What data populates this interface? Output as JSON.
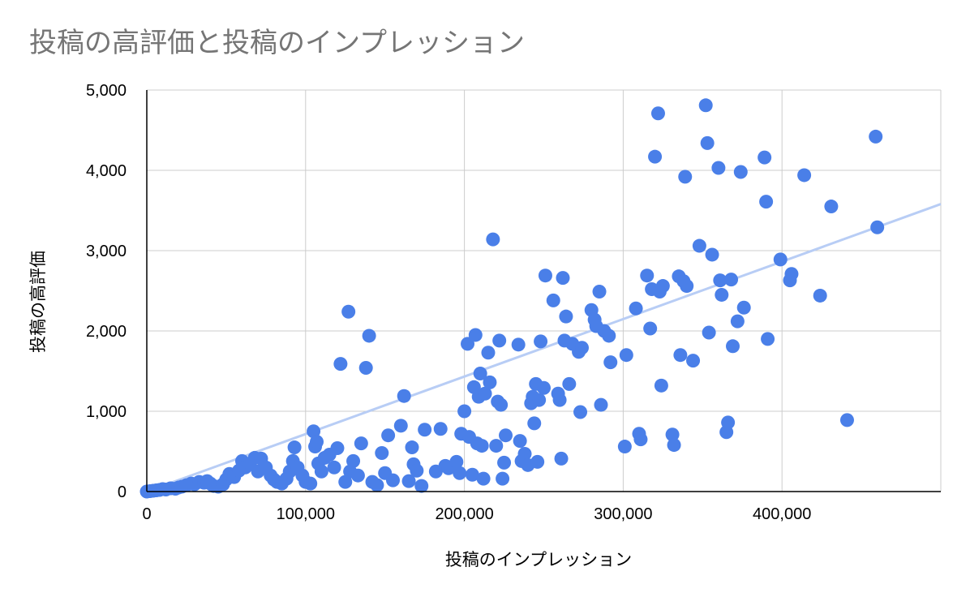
{
  "chart_data": {
    "type": "scatter",
    "title": "投稿の高評価と投稿のインプレッション",
    "xlabel": "投稿のインプレッション",
    "ylabel": "投稿の高評価",
    "xlim": [
      0,
      500000
    ],
    "ylim": [
      0,
      5000
    ],
    "x_ticks": [
      0,
      100000,
      200000,
      300000,
      400000
    ],
    "x_tick_labels": [
      "0",
      "100,000",
      "200,000",
      "300,000",
      "400,000"
    ],
    "y_ticks": [
      0,
      1000,
      2000,
      3000,
      4000,
      5000
    ],
    "y_tick_labels": [
      "0",
      "1,000",
      "2,000",
      "3,000",
      "4,000",
      "5,000"
    ],
    "grid": true,
    "legend": "none",
    "point_color": "#4a7fe8",
    "trendline": {
      "type": "linear",
      "color": "#b8cdf5",
      "points": [
        [
          0,
          0
        ],
        [
          500000,
          3580
        ]
      ]
    },
    "points": [
      [
        0,
        0
      ],
      [
        2000,
        5
      ],
      [
        4000,
        10
      ],
      [
        6000,
        15
      ],
      [
        8000,
        20
      ],
      [
        10000,
        30
      ],
      [
        12000,
        25
      ],
      [
        15000,
        40
      ],
      [
        18000,
        35
      ],
      [
        20000,
        50
      ],
      [
        22000,
        60
      ],
      [
        25000,
        80
      ],
      [
        28000,
        100
      ],
      [
        30000,
        90
      ],
      [
        33000,
        120
      ],
      [
        36000,
        110
      ],
      [
        38000,
        130
      ],
      [
        40000,
        100
      ],
      [
        42000,
        70
      ],
      [
        45000,
        60
      ],
      [
        48000,
        90
      ],
      [
        50000,
        150
      ],
      [
        52000,
        220
      ],
      [
        55000,
        180
      ],
      [
        58000,
        260
      ],
      [
        60000,
        380
      ],
      [
        62000,
        300
      ],
      [
        65000,
        350
      ],
      [
        68000,
        420
      ],
      [
        70000,
        250
      ],
      [
        72000,
        410
      ],
      [
        75000,
        300
      ],
      [
        78000,
        200
      ],
      [
        80000,
        150
      ],
      [
        82000,
        120
      ],
      [
        85000,
        100
      ],
      [
        88000,
        160
      ],
      [
        90000,
        250
      ],
      [
        92000,
        380
      ],
      [
        93000,
        550
      ],
      [
        95000,
        300
      ],
      [
        98000,
        200
      ],
      [
        100000,
        120
      ],
      [
        103000,
        100
      ],
      [
        105000,
        750
      ],
      [
        106000,
        560
      ],
      [
        107000,
        620
      ],
      [
        108000,
        350
      ],
      [
        110000,
        250
      ],
      [
        112000,
        420
      ],
      [
        115000,
        460
      ],
      [
        118000,
        300
      ],
      [
        120000,
        540
      ],
      [
        122000,
        1590
      ],
      [
        125000,
        120
      ],
      [
        127000,
        2240
      ],
      [
        128000,
        250
      ],
      [
        130000,
        380
      ],
      [
        133000,
        200
      ],
      [
        135000,
        600
      ],
      [
        138000,
        1540
      ],
      [
        140000,
        1940
      ],
      [
        142000,
        120
      ],
      [
        145000,
        80
      ],
      [
        148000,
        480
      ],
      [
        150000,
        230
      ],
      [
        152000,
        700
      ],
      [
        155000,
        140
      ],
      [
        160000,
        820
      ],
      [
        162000,
        1190
      ],
      [
        165000,
        130
      ],
      [
        167000,
        550
      ],
      [
        168000,
        340
      ],
      [
        170000,
        260
      ],
      [
        173000,
        70
      ],
      [
        175000,
        770
      ],
      [
        182000,
        250
      ],
      [
        185000,
        780
      ],
      [
        188000,
        320
      ],
      [
        190000,
        290
      ],
      [
        195000,
        370
      ],
      [
        197000,
        230
      ],
      [
        198000,
        720
      ],
      [
        200000,
        1000
      ],
      [
        202000,
        1840
      ],
      [
        203000,
        680
      ],
      [
        205000,
        210
      ],
      [
        206000,
        1300
      ],
      [
        207000,
        1950
      ],
      [
        208000,
        600
      ],
      [
        209000,
        1180
      ],
      [
        210000,
        1470
      ],
      [
        211000,
        570
      ],
      [
        212000,
        160
      ],
      [
        213000,
        1220
      ],
      [
        215000,
        1730
      ],
      [
        216000,
        1360
      ],
      [
        218000,
        3140
      ],
      [
        220000,
        570
      ],
      [
        221000,
        1120
      ],
      [
        222000,
        1880
      ],
      [
        223000,
        1080
      ],
      [
        224000,
        160
      ],
      [
        225000,
        360
      ],
      [
        226000,
        700
      ],
      [
        234000,
        1830
      ],
      [
        235000,
        630
      ],
      [
        236000,
        380
      ],
      [
        238000,
        470
      ],
      [
        240000,
        330
      ],
      [
        242000,
        1100
      ],
      [
        243000,
        1180
      ],
      [
        244000,
        850
      ],
      [
        245000,
        1340
      ],
      [
        246000,
        370
      ],
      [
        247000,
        1140
      ],
      [
        248000,
        1870
      ],
      [
        250000,
        1290
      ],
      [
        251000,
        2690
      ],
      [
        256000,
        2380
      ],
      [
        259000,
        1220
      ],
      [
        260000,
        1140
      ],
      [
        261000,
        410
      ],
      [
        262000,
        2660
      ],
      [
        263000,
        1880
      ],
      [
        264000,
        2180
      ],
      [
        266000,
        1340
      ],
      [
        268000,
        1840
      ],
      [
        272000,
        1740
      ],
      [
        273000,
        990
      ],
      [
        274000,
        1790
      ],
      [
        280000,
        2260
      ],
      [
        282000,
        2140
      ],
      [
        283000,
        2060
      ],
      [
        285000,
        2490
      ],
      [
        286000,
        1080
      ],
      [
        288000,
        2000
      ],
      [
        291000,
        1940
      ],
      [
        292000,
        1610
      ],
      [
        301000,
        560
      ],
      [
        302000,
        1700
      ],
      [
        308000,
        2280
      ],
      [
        310000,
        720
      ],
      [
        311000,
        650
      ],
      [
        315000,
        2690
      ],
      [
        317000,
        2030
      ],
      [
        318000,
        2520
      ],
      [
        320000,
        4170
      ],
      [
        322000,
        4710
      ],
      [
        323000,
        2490
      ],
      [
        324000,
        1320
      ],
      [
        325000,
        2560
      ],
      [
        331000,
        710
      ],
      [
        332000,
        580
      ],
      [
        335000,
        2680
      ],
      [
        336000,
        1700
      ],
      [
        338000,
        2620
      ],
      [
        339000,
        3920
      ],
      [
        340000,
        2560
      ],
      [
        344000,
        1630
      ],
      [
        348000,
        3060
      ],
      [
        352000,
        4810
      ],
      [
        353000,
        4340
      ],
      [
        354000,
        1980
      ],
      [
        356000,
        2950
      ],
      [
        360000,
        4030
      ],
      [
        361000,
        2630
      ],
      [
        362000,
        2450
      ],
      [
        365000,
        740
      ],
      [
        366000,
        860
      ],
      [
        368000,
        2640
      ],
      [
        369000,
        1810
      ],
      [
        372000,
        2120
      ],
      [
        374000,
        3980
      ],
      [
        376000,
        2290
      ],
      [
        389000,
        4160
      ],
      [
        390000,
        3610
      ],
      [
        391000,
        1900
      ],
      [
        399000,
        2890
      ],
      [
        405000,
        2630
      ],
      [
        406000,
        2710
      ],
      [
        414000,
        3940
      ],
      [
        424000,
        2440
      ],
      [
        431000,
        3550
      ],
      [
        441000,
        890
      ],
      [
        459000,
        4420
      ],
      [
        460000,
        3290
      ]
    ]
  }
}
